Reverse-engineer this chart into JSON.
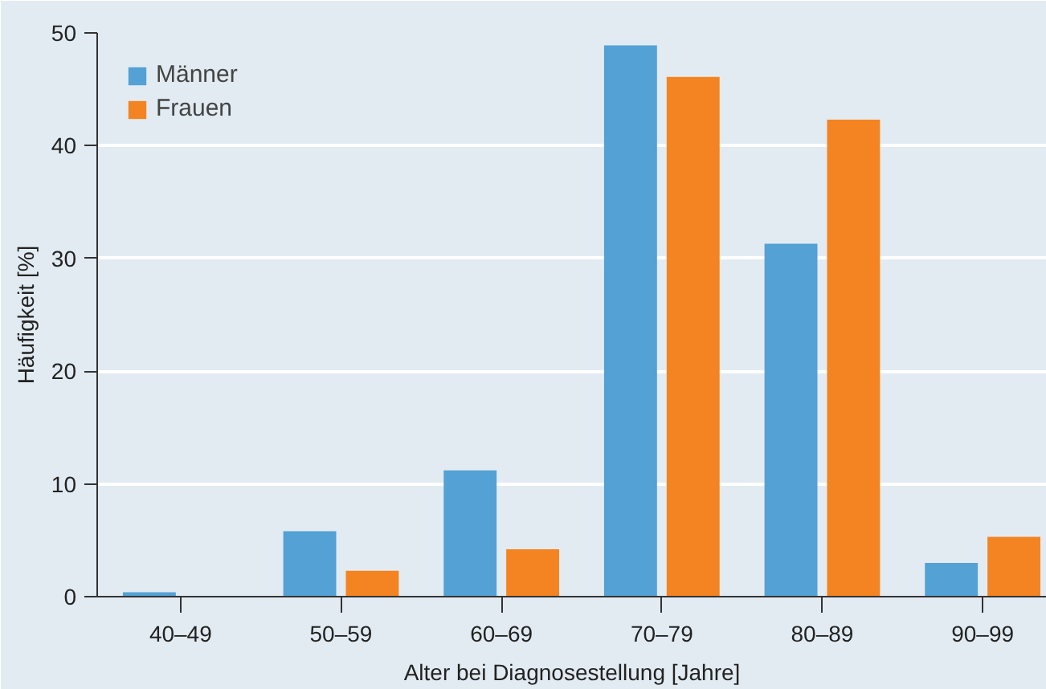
{
  "chart_data": {
    "type": "bar",
    "xlabel": "Alter bei Diagnosestellung [Jahre]",
    "ylabel": "Häufigkeit [%]",
    "categories": [
      "40–49",
      "50–59",
      "60–69",
      "70–79",
      "80–89",
      "90–99"
    ],
    "series": [
      {
        "name": "Männer",
        "color": "#53a1d5",
        "values": [
          0.4,
          5.8,
          11.2,
          48.9,
          31.3,
          3.0
        ]
      },
      {
        "name": "Frauen",
        "color": "#f38421",
        "values": [
          0,
          2.3,
          4.2,
          46.1,
          42.3,
          5.3
        ]
      }
    ],
    "ylim": [
      0,
      50
    ],
    "yticks": [
      0,
      10,
      20,
      30,
      40,
      50
    ],
    "grid": "y",
    "legend": "top left"
  }
}
